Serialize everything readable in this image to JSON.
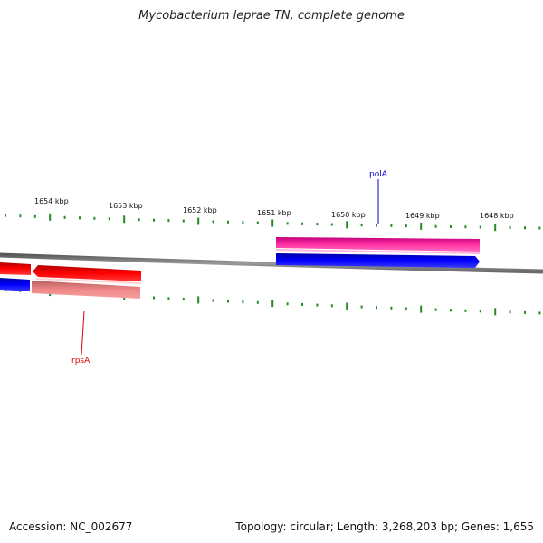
{
  "title": "Mycobacterium leprae TN, complete genome",
  "accession": "Accession: NC_002677",
  "topology": "Topology: circular; Length: 3,268,203 bp; Genes: 1,655",
  "ticks": [
    {
      "label": "1654 kbp",
      "kbp": 1654
    },
    {
      "label": "1653 kbp",
      "kbp": 1653
    },
    {
      "label": "1652 kbp",
      "kbp": 1652
    },
    {
      "label": "1651 kbp",
      "kbp": 1651
    },
    {
      "label": "1650 kbp",
      "kbp": 1650
    },
    {
      "label": "1649 kbp",
      "kbp": 1649
    },
    {
      "label": "1648 kbp",
      "kbp": 1648
    }
  ],
  "genes": {
    "polA": {
      "label": "polA",
      "color": "#0000cc"
    },
    "rpsA": {
      "label": "rpsA",
      "color": "#dd0000"
    }
  },
  "colors": {
    "backbone": "#808080",
    "tick": "#228b22",
    "forward_magenta": "#ff1493",
    "forward_red": "#ff0000",
    "forward_pink": "#f08080",
    "reverse_blue": "#0000ff"
  }
}
